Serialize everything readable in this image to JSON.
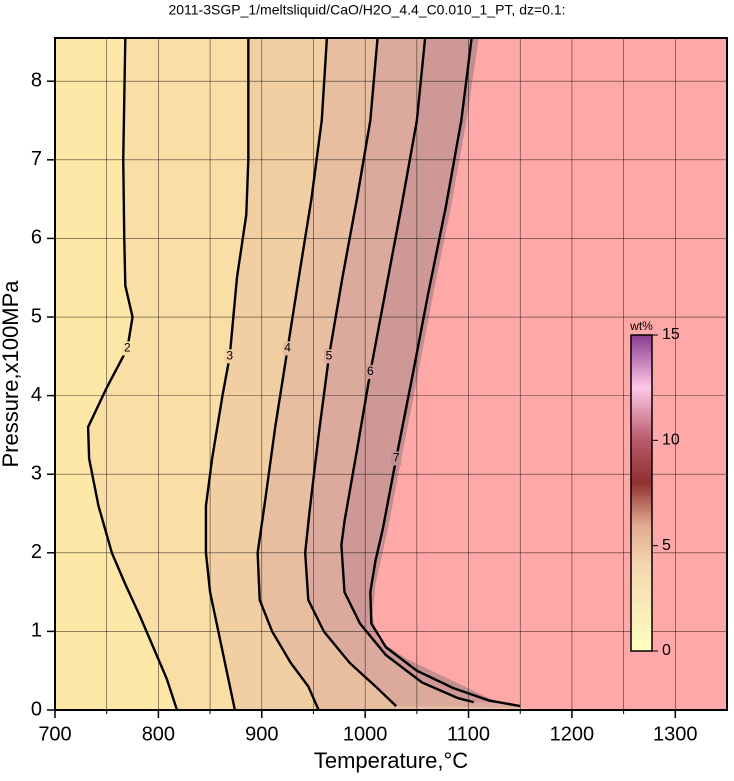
{
  "chart_data": {
    "type": "contour",
    "title": "2011-3SGP_1/meltsliquid/CaO/H2O_4.4_C0.010_1_PT, dz=0.1:",
    "xlabel": "Temperature,°C",
    "ylabel": "Pressure,x100MPa",
    "xlim": [
      700,
      1350
    ],
    "ylim": [
      0,
      8.55
    ],
    "xticks": [
      700,
      800,
      900,
      1000,
      1100,
      1200,
      1300
    ],
    "x_minor_ticks": [
      750,
      850,
      950,
      1050,
      1150,
      1250
    ],
    "yticks": [
      0,
      1,
      2,
      3,
      4,
      5,
      6,
      7,
      8
    ],
    "grid": true,
    "background": "#fde8a8",
    "levels": [
      {
        "value": 2,
        "fill": "#f9dea6",
        "x": [
          768,
          766,
          767,
          768,
          775,
          770,
          750,
          732,
          733,
          742,
          755,
          768,
          782,
          795,
          808,
          818
        ],
        "y": [
          8.55,
          7.0,
          6.0,
          5.4,
          5.0,
          4.6,
          4.1,
          3.6,
          3.2,
          2.6,
          2.0,
          1.6,
          1.2,
          0.8,
          0.4,
          0.0
        ]
      },
      {
        "value": 3,
        "fill": "#f2cfa2",
        "x": [
          887,
          887,
          885,
          876,
          869,
          862,
          852,
          846,
          846,
          850,
          858,
          866,
          874
        ],
        "y": [
          8.55,
          7.0,
          6.3,
          5.5,
          4.5,
          4.0,
          3.2,
          2.6,
          2.0,
          1.5,
          1.0,
          0.5,
          0.0
        ]
      },
      {
        "value": 4,
        "fill": "#e8bea0",
        "x": [
          963,
          958,
          948,
          937,
          925,
          913,
          903,
          896,
          898,
          910,
          928,
          945,
          955
        ],
        "y": [
          8.55,
          7.5,
          6.5,
          5.6,
          4.6,
          3.6,
          2.64,
          2.0,
          1.4,
          1.0,
          0.6,
          0.3,
          0.0
        ]
      },
      {
        "value": 5,
        "fill": "#dcaa9c",
        "x": [
          1012,
          1005,
          992,
          978,
          965,
          955,
          946,
          942,
          945,
          960,
          985,
          1010,
          1030
        ],
        "y": [
          8.55,
          7.5,
          6.5,
          5.5,
          4.5,
          3.5,
          2.5,
          2.0,
          1.4,
          1.0,
          0.6,
          0.3,
          0.05
        ]
      },
      {
        "value": 6,
        "fill": "#cd9895",
        "x": [
          1058,
          1050,
          1035,
          1020,
          1005,
          992,
          980,
          977,
          980,
          995,
          1020,
          1055,
          1090,
          1105
        ],
        "y": [
          8.55,
          7.5,
          6.4,
          5.35,
          4.3,
          3.3,
          2.4,
          2.1,
          1.5,
          1.1,
          0.7,
          0.35,
          0.15,
          0.1
        ]
      },
      {
        "value": 7,
        "fill": "#c48e90",
        "x": [
          1103,
          1093,
          1078,
          1061,
          1045,
          1030,
          1017,
          1010,
          1005,
          1006,
          1020,
          1050,
          1085,
          1120,
          1150
        ],
        "y": [
          8.55,
          7.5,
          6.4,
          5.3,
          4.2,
          3.2,
          2.3,
          1.9,
          1.5,
          1.1,
          0.8,
          0.5,
          0.28,
          0.12,
          0.05
        ]
      }
    ],
    "region": {
      "color": "#ffa8a8",
      "x": [
        1110,
        1098,
        1083,
        1066,
        1050,
        1035,
        1022,
        1010,
        1007,
        1012,
        1040,
        1080,
        1120,
        1160
      ],
      "y": [
        8.55,
        7.5,
        6.4,
        5.3,
        4.2,
        3.2,
        2.3,
        1.6,
        1.2,
        0.9,
        0.65,
        0.4,
        0.15,
        0.0
      ]
    },
    "colorbar": {
      "label": "wt%",
      "lim": [
        0,
        15
      ],
      "ticks": [
        0,
        5,
        10,
        15
      ],
      "stops": [
        [
          0,
          "#ffffc0"
        ],
        [
          4,
          "#f4d8b0"
        ],
        [
          6,
          "#e0a890"
        ],
        [
          8,
          "#903030"
        ],
        [
          10,
          "#b85a6a"
        ],
        [
          12.5,
          "#ffc8e8"
        ],
        [
          15,
          "#8a3a90"
        ]
      ]
    }
  }
}
